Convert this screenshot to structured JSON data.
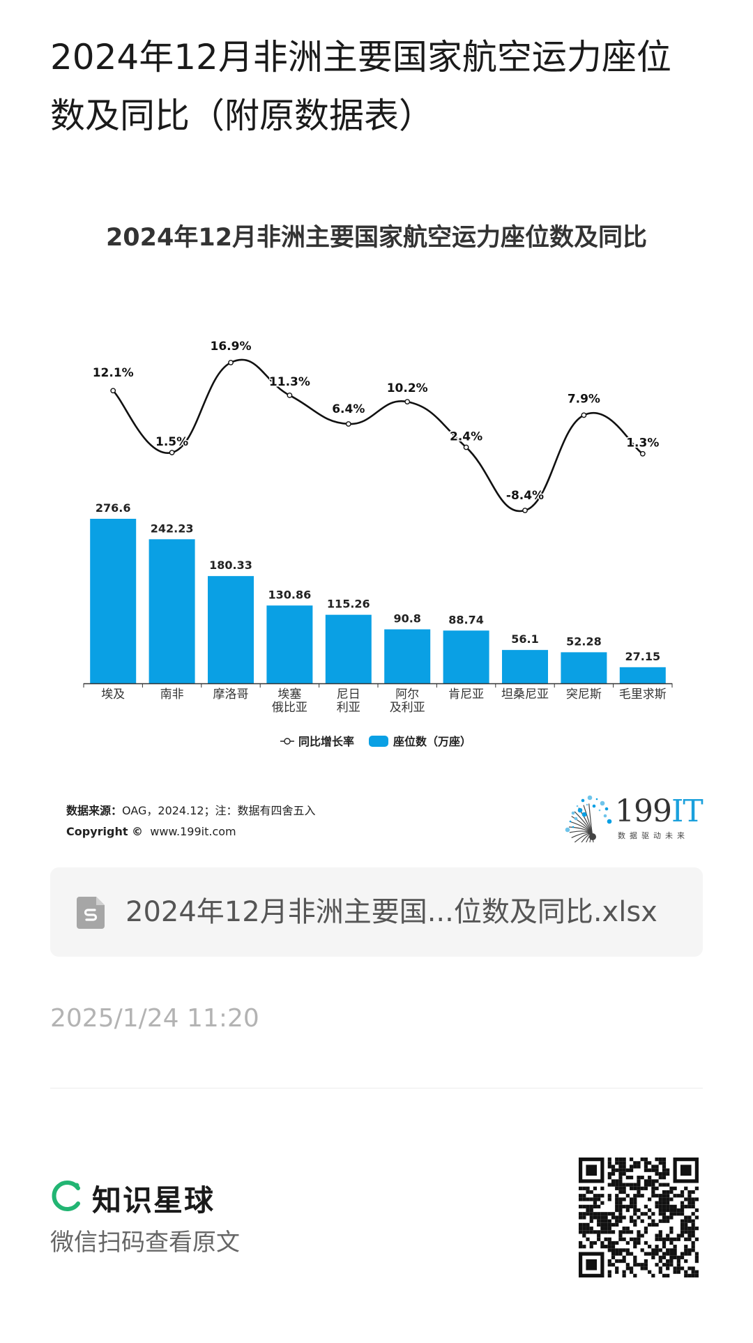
{
  "post": {
    "title": "2024年12月非洲主要国家航空运力座位数及同比（附原数据表）",
    "attachment_name": "2024年12月非洲主要国...位数及同比.xlsx",
    "timestamp": "2025/1/24 11:20",
    "footer_brand": "知识星球",
    "footer_hint": "微信扫码查看原文"
  },
  "source": {
    "label": "数据来源：",
    "text": "OAG，2024.12；注：数据有四舍五入",
    "copyright_label": "Copyright ©",
    "copyright_url": "www.199it.com"
  },
  "logo": {
    "brand_num": "199",
    "brand_it": "IT",
    "slogan": "数据驱动未来"
  },
  "colors": {
    "bar": "#0aa0e4",
    "line": "#111111",
    "planet_green": "#22b573"
  },
  "chart_data": {
    "type": "bar",
    "title": "2024年12月非洲主要国家航空运力座位数及同比",
    "categories": [
      "埃及",
      "南非",
      "摩洛哥",
      "埃塞俄比亚",
      "尼日利亚",
      "阿尔及利亚",
      "肯尼亚",
      "坦桑尼亚",
      "突尼斯",
      "毛里求斯"
    ],
    "category_lines": [
      [
        "埃及"
      ],
      [
        "南非"
      ],
      [
        "摩洛哥"
      ],
      [
        "埃塞",
        "俄比亚"
      ],
      [
        "尼日",
        "利亚"
      ],
      [
        "阿尔",
        "及利亚"
      ],
      [
        "肯尼亚"
      ],
      [
        "坦桑尼亚"
      ],
      [
        "突尼斯"
      ],
      [
        "毛里求斯"
      ]
    ],
    "series": [
      {
        "name": "座位数（万座）",
        "type": "bar",
        "values": [
          276.6,
          242.23,
          180.33,
          130.86,
          115.26,
          90.8,
          88.74,
          56.1,
          52.28,
          27.15
        ],
        "labels": [
          "276.6",
          "242.23",
          "180.33",
          "130.86",
          "115.26",
          "90.8",
          "88.74",
          "56.1",
          "52.28",
          "27.15"
        ]
      },
      {
        "name": "同比增长率",
        "type": "line",
        "unit": "%",
        "values": [
          12.1,
          1.5,
          16.9,
          11.3,
          6.4,
          10.2,
          2.4,
          -8.4,
          7.9,
          1.3
        ],
        "labels": [
          "12.1%",
          "1.5%",
          "16.9%",
          "11.3%",
          "6.4%",
          "10.2%",
          "2.4%",
          "-8.4%",
          "7.9%",
          "1.3%"
        ]
      }
    ],
    "legend": {
      "line": "同比增长率",
      "bar": "座位数（万座）"
    },
    "legend_position": "bottom",
    "grid": false
  }
}
